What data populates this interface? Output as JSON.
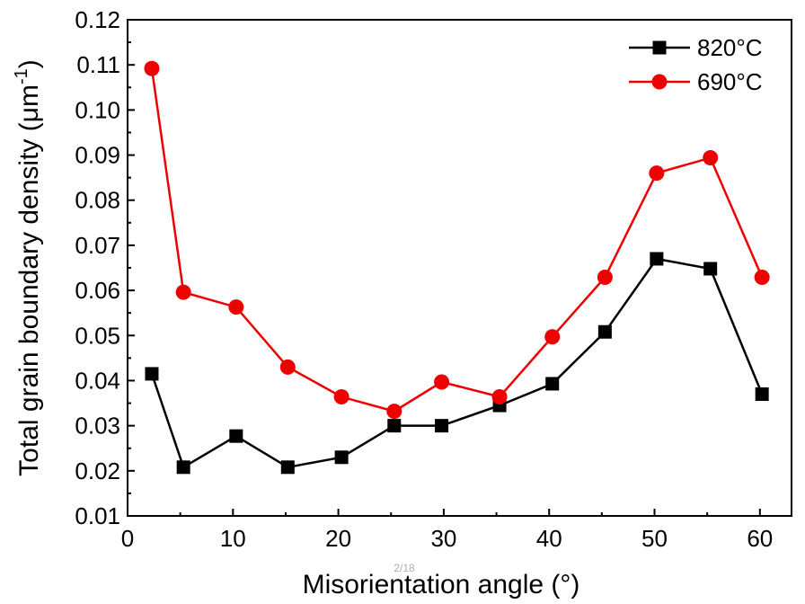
{
  "chart_data": {
    "type": "line",
    "xlabel": "Misorientation angle (°)",
    "ylabel": "Total grain boundary density (μm",
    "ylabel_superscript": "-1",
    "ylabel_suffix": ")",
    "xlim": [
      0,
      63
    ],
    "ylim": [
      0.01,
      0.12
    ],
    "xticks": [
      "0",
      "10",
      "20",
      "30",
      "40",
      "50",
      "60"
    ],
    "yticks": [
      "0.01",
      "0.02",
      "0.03",
      "0.04",
      "0.05",
      "0.06",
      "0.07",
      "0.08",
      "0.09",
      "0.10",
      "0.11",
      "0.12"
    ],
    "x": [
      2.3,
      5.3,
      10.3,
      15.2,
      20.3,
      25.3,
      29.8,
      35.3,
      40.3,
      45.3,
      50.2,
      55.3,
      60.2
    ],
    "series": [
      {
        "name": "820°C",
        "color": "#000000",
        "marker": "square",
        "values": [
          0.0415,
          0.0208,
          0.0277,
          0.0208,
          0.023,
          0.03,
          0.03,
          0.0345,
          0.0393,
          0.0508,
          0.067,
          0.0648,
          0.037
        ]
      },
      {
        "name": "690°C",
        "color": "#ee0000",
        "marker": "circle",
        "values": [
          0.1092,
          0.0596,
          0.0563,
          0.043,
          0.0364,
          0.0332,
          0.0397,
          0.0364,
          0.0497,
          0.0629,
          0.086,
          0.0894,
          0.0629
        ]
      }
    ],
    "legend_position": "top-right",
    "grid": false
  },
  "page_marker": "2/18"
}
